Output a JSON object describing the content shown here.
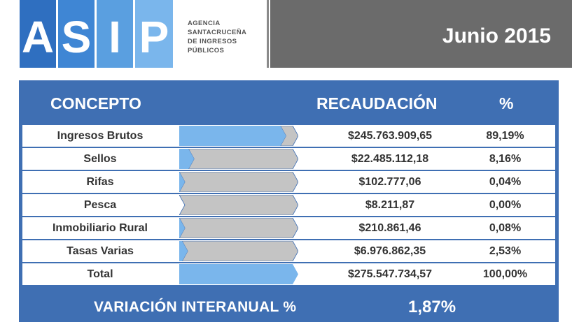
{
  "header": {
    "logo_letters": [
      "A",
      "S",
      "I",
      "P"
    ],
    "agency_lines": [
      "AGENCIA",
      "SANTACRUCEÑA",
      "DE INGRESOS",
      "PÚBLICOS"
    ],
    "period": "Junio 2015"
  },
  "colors": {
    "panel_blue": "#3f6fb3",
    "bar_blue": "#7ab6ec",
    "bar_gray": "#c4c4c4",
    "header_gray": "#6b6b6b"
  },
  "chart_data": {
    "type": "table",
    "columns": [
      "CONCEPTO",
      "RECAUDACIÓN",
      "%"
    ],
    "rows": [
      {
        "concepto": "Ingresos Brutos",
        "recaudacion": "$245.763.909,65",
        "pct_label": "89,19%",
        "pct": 89.19
      },
      {
        "concepto": "Sellos",
        "recaudacion": "$22.485.112,18",
        "pct_label": "8,16%",
        "pct": 8.16
      },
      {
        "concepto": "Rifas",
        "recaudacion": "$102.777,06",
        "pct_label": "0,04%",
        "pct": 0.04
      },
      {
        "concepto": "Pesca",
        "recaudacion": "$8.211,87",
        "pct_label": "0,00%",
        "pct": 0.0
      },
      {
        "concepto": "Inmobiliario Rural",
        "recaudacion": "$210.861,46",
        "pct_label": "0,08%",
        "pct": 0.08
      },
      {
        "concepto": "Tasas Varias",
        "recaudacion": "$6.976.862,35",
        "pct_label": "2,53%",
        "pct": 2.53
      },
      {
        "concepto": "Total",
        "recaudacion": "$275.547.734,57",
        "pct_label": "100,00%",
        "pct": 100.0
      }
    ],
    "variation_label": "VARIACIÓN INTERANUAL %",
    "variation_value": "1,87%"
  }
}
